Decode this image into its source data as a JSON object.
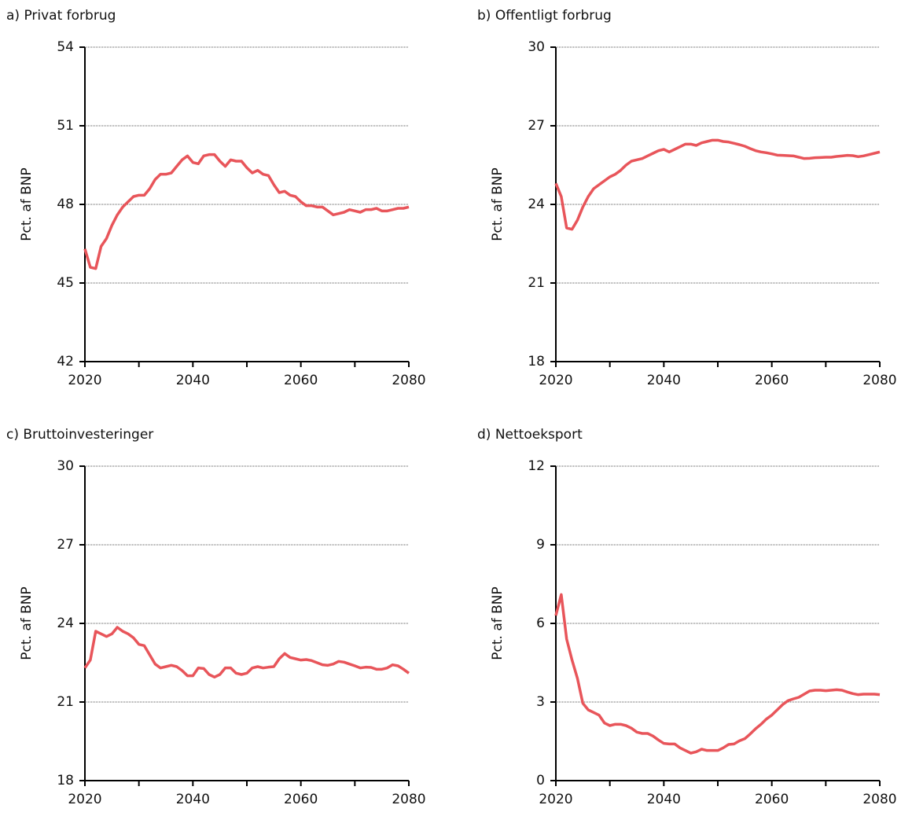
{
  "chart_data": [
    {
      "type": "line",
      "title": "a) Privat forbrug",
      "ylabel": "Pct. af BNP",
      "x": [
        2020,
        2021,
        2022,
        2023,
        2024,
        2025,
        2026,
        2027,
        2028,
        2029,
        2030,
        2031,
        2032,
        2033,
        2034,
        2035,
        2036,
        2037,
        2038,
        2039,
        2040,
        2041,
        2042,
        2043,
        2044,
        2045,
        2046,
        2047,
        2048,
        2049,
        2050,
        2051,
        2052,
        2053,
        2054,
        2055,
        2056,
        2057,
        2058,
        2059,
        2060,
        2061,
        2062,
        2063,
        2064,
        2065,
        2066,
        2067,
        2068,
        2069,
        2070,
        2071,
        2072,
        2073,
        2074,
        2075,
        2076,
        2077,
        2078,
        2079,
        2080
      ],
      "values": [
        46.3,
        45.6,
        45.55,
        46.4,
        46.7,
        47.2,
        47.6,
        47.9,
        48.1,
        48.3,
        48.35,
        48.35,
        48.6,
        48.95,
        49.15,
        49.15,
        49.2,
        49.45,
        49.7,
        49.85,
        49.6,
        49.55,
        49.85,
        49.9,
        49.9,
        49.65,
        49.45,
        49.7,
        49.65,
        49.65,
        49.4,
        49.2,
        49.3,
        49.15,
        49.1,
        48.75,
        48.45,
        48.5,
        48.35,
        48.3,
        48.1,
        47.95,
        47.95,
        47.9,
        47.9,
        47.75,
        47.6,
        47.65,
        47.7,
        47.8,
        47.75,
        47.7,
        47.8,
        47.8,
        47.85,
        47.75,
        47.75,
        47.8,
        47.85,
        47.85,
        47.9
      ],
      "color": "#e8555a",
      "xlim": [
        2020,
        2080
      ],
      "xticks": [
        2020,
        2040,
        2060,
        2080
      ],
      "xminorticks": [
        2030,
        2050,
        2070
      ],
      "ylim": [
        42,
        54
      ],
      "yticks": [
        42,
        45,
        48,
        51,
        54
      ],
      "grid": true
    },
    {
      "type": "line",
      "title": "b) Offentligt forbrug",
      "ylabel": "Pct. af BNP",
      "x": [
        2020,
        2021,
        2022,
        2023,
        2024,
        2025,
        2026,
        2027,
        2028,
        2029,
        2030,
        2031,
        2032,
        2033,
        2034,
        2035,
        2036,
        2037,
        2038,
        2039,
        2040,
        2041,
        2042,
        2043,
        2044,
        2045,
        2046,
        2047,
        2048,
        2049,
        2050,
        2051,
        2052,
        2053,
        2054,
        2055,
        2056,
        2057,
        2058,
        2059,
        2060,
        2061,
        2062,
        2063,
        2064,
        2065,
        2066,
        2067,
        2068,
        2069,
        2070,
        2071,
        2072,
        2073,
        2074,
        2075,
        2076,
        2077,
        2078,
        2079,
        2080
      ],
      "values": [
        24.8,
        24.3,
        23.1,
        23.05,
        23.4,
        23.9,
        24.3,
        24.6,
        24.75,
        24.9,
        25.05,
        25.15,
        25.3,
        25.5,
        25.65,
        25.7,
        25.75,
        25.85,
        25.95,
        26.05,
        26.1,
        26.0,
        26.1,
        26.2,
        26.3,
        26.3,
        26.25,
        26.35,
        26.4,
        26.45,
        26.45,
        26.4,
        26.38,
        26.33,
        26.28,
        26.22,
        26.13,
        26.05,
        26.0,
        25.97,
        25.93,
        25.88,
        25.87,
        25.86,
        25.85,
        25.8,
        25.75,
        25.76,
        25.78,
        25.79,
        25.8,
        25.8,
        25.83,
        25.85,
        25.87,
        25.86,
        25.82,
        25.85,
        25.9,
        25.95,
        26.0
      ],
      "color": "#e8555a",
      "xlim": [
        2020,
        2080
      ],
      "xticks": [
        2020,
        2040,
        2060,
        2080
      ],
      "xminorticks": [
        2030,
        2050,
        2070
      ],
      "ylim": [
        18,
        30
      ],
      "yticks": [
        18,
        21,
        24,
        27,
        30
      ],
      "grid": true
    },
    {
      "type": "line",
      "title": "c) Bruttoinvesteringer",
      "ylabel": "Pct. af BNP",
      "x": [
        2020,
        2021,
        2022,
        2023,
        2024,
        2025,
        2026,
        2027,
        2028,
        2029,
        2030,
        2031,
        2032,
        2033,
        2034,
        2035,
        2036,
        2037,
        2038,
        2039,
        2040,
        2041,
        2042,
        2043,
        2044,
        2045,
        2046,
        2047,
        2048,
        2049,
        2050,
        2051,
        2052,
        2053,
        2054,
        2055,
        2056,
        2057,
        2058,
        2059,
        2060,
        2061,
        2062,
        2063,
        2064,
        2065,
        2066,
        2067,
        2068,
        2069,
        2070,
        2071,
        2072,
        2073,
        2074,
        2075,
        2076,
        2077,
        2078,
        2079,
        2080
      ],
      "values": [
        22.3,
        22.6,
        23.7,
        23.6,
        23.5,
        23.6,
        23.85,
        23.7,
        23.6,
        23.45,
        23.2,
        23.15,
        22.8,
        22.45,
        22.3,
        22.35,
        22.4,
        22.35,
        22.2,
        22.0,
        22.0,
        22.3,
        22.28,
        22.05,
        21.95,
        22.05,
        22.3,
        22.3,
        22.1,
        22.05,
        22.1,
        22.3,
        22.35,
        22.3,
        22.33,
        22.35,
        22.65,
        22.85,
        22.7,
        22.65,
        22.6,
        22.62,
        22.58,
        22.5,
        22.42,
        22.4,
        22.45,
        22.55,
        22.52,
        22.45,
        22.38,
        22.3,
        22.33,
        22.32,
        22.25,
        22.25,
        22.3,
        22.42,
        22.38,
        22.25,
        22.1
      ],
      "color": "#e8555a",
      "xlim": [
        2020,
        2080
      ],
      "xticks": [
        2020,
        2040,
        2060,
        2080
      ],
      "xminorticks": [
        2030,
        2050,
        2070
      ],
      "ylim": [
        18,
        30
      ],
      "yticks": [
        18,
        21,
        24,
        27,
        30
      ],
      "grid": true
    },
    {
      "type": "line",
      "title": "d) Nettoeksport",
      "ylabel": "Pct. af BNP",
      "x": [
        2020,
        2021,
        2022,
        2023,
        2024,
        2025,
        2026,
        2027,
        2028,
        2029,
        2030,
        2031,
        2032,
        2033,
        2034,
        2035,
        2036,
        2037,
        2038,
        2039,
        2040,
        2041,
        2042,
        2043,
        2044,
        2045,
        2046,
        2047,
        2048,
        2049,
        2050,
        2051,
        2052,
        2053,
        2054,
        2055,
        2056,
        2057,
        2058,
        2059,
        2060,
        2061,
        2062,
        2063,
        2064,
        2065,
        2066,
        2067,
        2068,
        2069,
        2070,
        2071,
        2072,
        2073,
        2074,
        2075,
        2076,
        2077,
        2078,
        2079,
        2080
      ],
      "values": [
        6.3,
        7.1,
        5.4,
        4.6,
        3.9,
        2.95,
        2.7,
        2.6,
        2.5,
        2.2,
        2.1,
        2.15,
        2.15,
        2.1,
        2.0,
        1.85,
        1.8,
        1.8,
        1.7,
        1.55,
        1.42,
        1.4,
        1.4,
        1.25,
        1.15,
        1.05,
        1.1,
        1.2,
        1.15,
        1.15,
        1.15,
        1.25,
        1.38,
        1.4,
        1.52,
        1.6,
        1.78,
        1.98,
        2.15,
        2.35,
        2.5,
        2.7,
        2.9,
        3.05,
        3.12,
        3.18,
        3.3,
        3.42,
        3.45,
        3.45,
        3.43,
        3.45,
        3.47,
        3.45,
        3.38,
        3.32,
        3.28,
        3.3,
        3.3,
        3.3,
        3.28
      ],
      "color": "#e8555a",
      "xlim": [
        2020,
        2080
      ],
      "xticks": [
        2020,
        2040,
        2060,
        2080
      ],
      "xminorticks": [
        2030,
        2050,
        2070
      ],
      "ylim": [
        0,
        12
      ],
      "yticks": [
        0,
        3,
        6,
        9,
        12
      ],
      "grid": true
    }
  ]
}
